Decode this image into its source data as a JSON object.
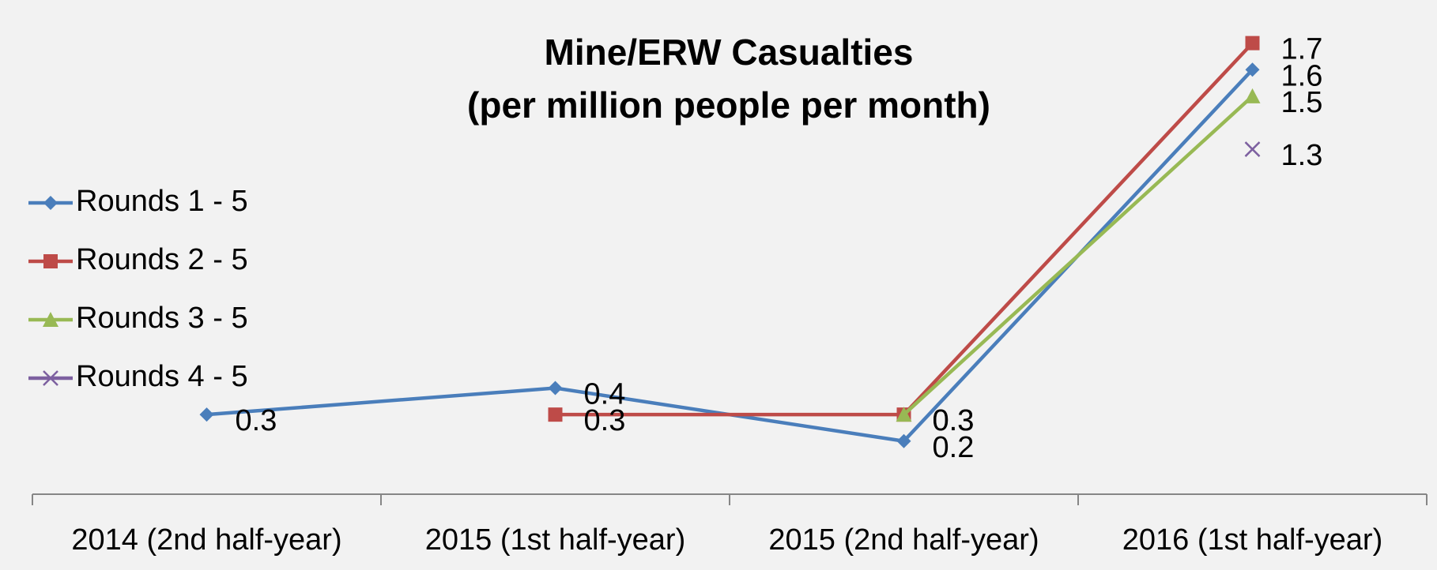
{
  "chart_data": {
    "type": "line",
    "title": "Mine/ERW Casualties",
    "subtitle": "(per million people per month)",
    "categories": [
      "2014 (2nd half-year)",
      "2015 (1st half-year)",
      "2015 (2nd half-year)",
      "2016 (1st half-year)"
    ],
    "series": [
      {
        "name": "Rounds 1 - 5",
        "color": "#4a7ebb",
        "marker": "diamond",
        "values": [
          0.3,
          0.4,
          0.2,
          1.6
        ]
      },
      {
        "name": "Rounds 2 - 5",
        "color": "#be4b48",
        "marker": "square",
        "values": [
          null,
          0.3,
          0.3,
          1.7
        ]
      },
      {
        "name": "Rounds 3 - 5",
        "color": "#98b954",
        "marker": "triangle",
        "values": [
          null,
          null,
          0.3,
          1.5
        ]
      },
      {
        "name": "Rounds 4 - 5",
        "color": "#7d60a0",
        "marker": "x",
        "values": [
          null,
          null,
          null,
          1.3
        ]
      }
    ],
    "ylim": [
      0,
      1.8
    ],
    "legend": "left"
  }
}
